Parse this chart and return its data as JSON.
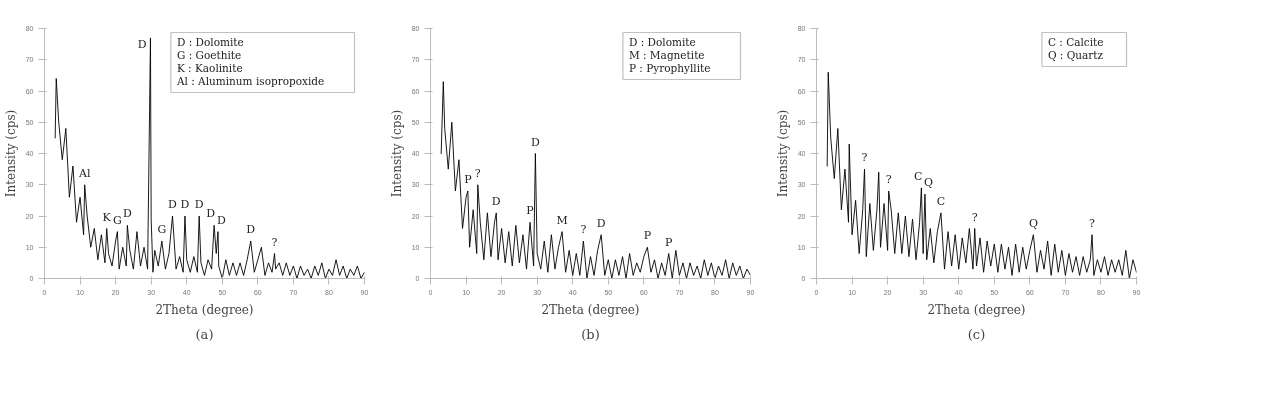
{
  "chart_data": [
    {
      "type": "line",
      "title": "(a)",
      "xlabel": "2Theta (degree)",
      "ylabel": "Intensity (cps)",
      "xlim": [
        0,
        90
      ],
      "ylim": [
        0,
        80
      ],
      "xticks": [
        0,
        10,
        20,
        30,
        40,
        50,
        60,
        70,
        80,
        90
      ],
      "yticks": [
        0,
        10,
        20,
        30,
        40,
        50,
        60,
        70,
        80
      ],
      "grid": false,
      "series": [
        {
          "color": "#000000",
          "x": [
            3,
            3.3,
            4,
            5,
            6,
            7,
            8,
            9,
            10,
            11,
            11.3,
            12,
            13,
            14,
            15,
            16,
            17,
            17.5,
            18,
            19,
            20,
            20.5,
            21,
            22,
            23,
            23.3,
            24,
            25,
            26,
            27,
            28,
            29,
            29.8,
            30,
            30.5,
            31,
            32,
            33,
            34,
            35,
            36,
            37,
            38,
            39,
            39.5,
            40,
            41,
            42,
            43,
            43.5,
            44,
            45,
            46,
            47,
            47.7,
            48.3,
            48.8,
            49,
            50,
            51,
            52,
            53,
            54,
            55,
            56,
            57,
            58,
            59,
            60,
            61,
            62,
            63,
            64,
            64.7,
            65,
            66,
            67,
            68,
            69,
            70,
            71,
            72,
            73,
            74,
            75,
            76,
            77,
            78,
            79,
            80,
            81,
            82,
            83,
            84,
            85,
            86,
            87,
            88,
            89,
            90
          ],
          "values": [
            45,
            64,
            50,
            38,
            48,
            26,
            36,
            18,
            26,
            14,
            30,
            20,
            10,
            16,
            6,
            14,
            5,
            16,
            8,
            4,
            12,
            15,
            3,
            10,
            4,
            17,
            9,
            3,
            15,
            4,
            10,
            3,
            77,
            19,
            2,
            9,
            4,
            12,
            3,
            8,
            20,
            3,
            7,
            2,
            20,
            6,
            2,
            7,
            2,
            20,
            5,
            1,
            6,
            3,
            17,
            8,
            15,
            4,
            0,
            6,
            1,
            5,
            1,
            5,
            1,
            6,
            12,
            2,
            6,
            10,
            1,
            5,
            2,
            8,
            3,
            5,
            1,
            5,
            1,
            4,
            0,
            4,
            1,
            3,
            0,
            4,
            1,
            5,
            0,
            3,
            1,
            6,
            1,
            4,
            0,
            3,
            1,
            4,
            0,
            2
          ]
        }
      ],
      "annotations": [
        "D : Dolomite",
        "G : Goethite",
        "K : Kaolinite",
        "Al : Aluminum isopropoxide",
        {
          "text": "Al",
          "x": 11.3,
          "y": 30
        },
        {
          "text": "K",
          "x": 17.5,
          "y": 16
        },
        {
          "text": "G",
          "x": 20.5,
          "y": 15
        },
        {
          "text": "D",
          "x": 23.3,
          "y": 17
        },
        {
          "text": "D",
          "x": 29.8,
          "y": 77
        },
        {
          "text": "G",
          "x": 33,
          "y": 12
        },
        {
          "text": "D",
          "x": 36,
          "y": 20
        },
        {
          "text": "D",
          "x": 39.5,
          "y": 20
        },
        {
          "text": "D",
          "x": 43.5,
          "y": 20
        },
        {
          "text": "D",
          "x": 47.7,
          "y": 17
        },
        {
          "text": "D",
          "x": 48.8,
          "y": 15
        },
        {
          "text": "D",
          "x": 58,
          "y": 12
        },
        {
          "text": "?",
          "x": 64.7,
          "y": 8
        }
      ]
    },
    {
      "type": "line",
      "title": "(b)",
      "xlabel": "2Theta (degree)",
      "ylabel": "Intensity (cps)",
      "xlim": [
        0,
        90
      ],
      "ylim": [
        0,
        80
      ],
      "xticks": [
        0,
        10,
        20,
        30,
        40,
        50,
        60,
        70,
        80,
        90
      ],
      "yticks": [
        0,
        10,
        20,
        30,
        40,
        50,
        60,
        70,
        80
      ],
      "grid": false,
      "series": [
        {
          "color": "#000000",
          "x": [
            3,
            3.6,
            4,
            5,
            6,
            7,
            8,
            9,
            10,
            10.5,
            11,
            12,
            13,
            13.3,
            14,
            15,
            16,
            17,
            18,
            18.5,
            19,
            20,
            21,
            22,
            23,
            24,
            25,
            26,
            27,
            28,
            29,
            29.5,
            30,
            31,
            32,
            33,
            34,
            35,
            36,
            37,
            38,
            39,
            40,
            41,
            42,
            43,
            44,
            45,
            46,
            47,
            48,
            49,
            50,
            51,
            52,
            53,
            54,
            55,
            56,
            57,
            58,
            59,
            60,
            61,
            62,
            63,
            64,
            65,
            66,
            67,
            68,
            69,
            70,
            71,
            72,
            73,
            74,
            75,
            76,
            77,
            78,
            79,
            80,
            81,
            82,
            83,
            84,
            85,
            86,
            87,
            88,
            89,
            90
          ],
          "values": [
            40,
            63,
            48,
            35,
            50,
            28,
            38,
            16,
            26,
            28,
            10,
            22,
            8,
            30,
            18,
            6,
            21,
            7,
            18,
            21,
            6,
            16,
            5,
            15,
            4,
            17,
            5,
            14,
            3,
            18,
            4,
            40,
            8,
            3,
            12,
            2,
            14,
            3,
            10,
            15,
            2,
            9,
            1,
            8,
            1,
            12,
            0,
            7,
            1,
            9,
            14,
            1,
            6,
            0,
            6,
            1,
            7,
            0,
            8,
            1,
            5,
            2,
            7,
            10,
            2,
            6,
            0,
            5,
            1,
            8,
            0,
            9,
            1,
            5,
            0,
            5,
            1,
            4,
            0,
            6,
            1,
            5,
            0,
            4,
            1,
            6,
            0,
            5,
            1,
            4,
            0,
            3,
            1
          ]
        }
      ],
      "annotations": [
        "D : Dolomite",
        "M : Magnetite",
        "P : Pyrophyllite",
        {
          "text": "P",
          "x": 10.5,
          "y": 28
        },
        {
          "text": "?",
          "x": 13.3,
          "y": 30
        },
        {
          "text": "D",
          "x": 18.5,
          "y": 21
        },
        {
          "text": "P",
          "x": 28,
          "y": 18
        },
        {
          "text": "D",
          "x": 29.5,
          "y": 40
        },
        {
          "text": "M",
          "x": 37,
          "y": 15
        },
        {
          "text": "?",
          "x": 43,
          "y": 12
        },
        {
          "text": "D",
          "x": 48,
          "y": 14
        },
        {
          "text": "P",
          "x": 61,
          "y": 10
        },
        {
          "text": "P",
          "x": 67,
          "y": 8
        }
      ]
    },
    {
      "type": "line",
      "title": "(c)",
      "xlabel": "2Theta (degree)",
      "ylabel": "Intensity (cps)",
      "xlim": [
        0,
        90
      ],
      "ylim": [
        0,
        80
      ],
      "xticks": [
        0,
        10,
        20,
        30,
        40,
        50,
        60,
        70,
        80,
        90
      ],
      "yticks": [
        0,
        10,
        20,
        30,
        40,
        50,
        60,
        70,
        80
      ],
      "grid": false,
      "series": [
        {
          "color": "#000000",
          "x": [
            3,
            3.3,
            4,
            5,
            6,
            7,
            8,
            9,
            9.2,
            10,
            11,
            12,
            13,
            13.5,
            14,
            15,
            16,
            17,
            17.5,
            18,
            19,
            20,
            20.3,
            21,
            22,
            23,
            24,
            25,
            26,
            27,
            28,
            29,
            29.5,
            30,
            30.5,
            31,
            32,
            33,
            34,
            35,
            36,
            37,
            38,
            39,
            40,
            41,
            42,
            43,
            44,
            44.5,
            45,
            46,
            47,
            48,
            49,
            50,
            51,
            52,
            53,
            54,
            55,
            56,
            57,
            58,
            59,
            60,
            61,
            62,
            63,
            64,
            65,
            66,
            67,
            68,
            69,
            70,
            71,
            72,
            73,
            74,
            75,
            76,
            77,
            77.5,
            78,
            79,
            80,
            81,
            82,
            83,
            84,
            85,
            86,
            87,
            88,
            89,
            90
          ],
          "values": [
            36,
            66,
            45,
            32,
            48,
            22,
            35,
            18,
            43,
            14,
            25,
            8,
            22,
            35,
            7,
            24,
            9,
            22,
            34,
            10,
            24,
            9,
            28,
            22,
            8,
            21,
            8,
            20,
            7,
            19,
            6,
            18,
            29,
            8,
            27,
            6,
            16,
            5,
            15,
            21,
            3,
            15,
            4,
            14,
            3,
            13,
            5,
            16,
            3,
            16,
            4,
            13,
            2,
            12,
            4,
            11,
            2,
            11,
            3,
            10,
            1,
            11,
            2,
            10,
            3,
            9,
            14,
            2,
            9,
            3,
            12,
            1,
            11,
            2,
            9,
            1,
            8,
            2,
            7,
            1,
            7,
            2,
            6,
            14,
            1,
            6,
            2,
            7,
            1,
            6,
            2,
            6,
            1,
            9,
            0,
            6,
            2
          ]
        }
      ],
      "annotations": [
        "C : Calcite",
        "Q : Quartz",
        {
          "text": "?",
          "x": 13.5,
          "y": 35
        },
        {
          "text": "?",
          "x": 20.3,
          "y": 28
        },
        {
          "text": "C",
          "x": 29.5,
          "y": 29
        },
        {
          "text": "Q",
          "x": 30.5,
          "y": 27
        },
        {
          "text": "C",
          "x": 35,
          "y": 21
        },
        {
          "text": "?",
          "x": 44.5,
          "y": 16
        },
        {
          "text": "Q",
          "x": 61,
          "y": 14
        },
        {
          "text": "?",
          "x": 77.5,
          "y": 14
        }
      ]
    }
  ]
}
